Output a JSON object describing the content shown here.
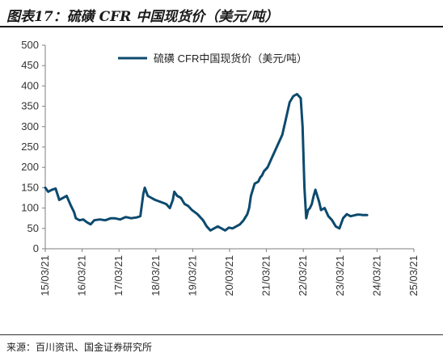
{
  "header": {
    "title": "图表17：硫磺 CFR 中国现货价（美元/吨）"
  },
  "footer": {
    "source": "来源：百川资讯、国金证券研究所"
  },
  "chart_data": {
    "type": "line",
    "title": "图表17：硫磺 CFR 中国现货价（美元/吨）",
    "xlabel": "",
    "ylabel": "",
    "ylim": [
      0,
      500
    ],
    "yticks": [
      0,
      50,
      100,
      150,
      200,
      250,
      300,
      350,
      400,
      450,
      500
    ],
    "xticks": [
      "15/03/21",
      "16/03/21",
      "17/03/21",
      "18/03/21",
      "19/03/21",
      "20/03/21",
      "21/03/21",
      "22/03/21",
      "23/03/21",
      "24/03/21",
      "25/03/21"
    ],
    "grid": false,
    "legend": "top-center",
    "colors": {
      "series": "#0d4a6e",
      "axis": "#7f7f7f"
    },
    "series": [
      {
        "name": "硫磺 CFR中国现货价（美元/吨）",
        "x": [
          2015.22,
          2015.3,
          2015.4,
          2015.5,
          2015.6,
          2015.7,
          2015.8,
          2015.92,
          2016.0,
          2016.05,
          2016.15,
          2016.25,
          2016.35,
          2016.45,
          2016.55,
          2016.7,
          2016.85,
          2017.0,
          2017.1,
          2017.25,
          2017.4,
          2017.55,
          2017.7,
          2017.8,
          2017.88,
          2017.92,
          2018.0,
          2018.1,
          2018.2,
          2018.35,
          2018.5,
          2018.6,
          2018.68,
          2018.72,
          2018.8,
          2018.9,
          2019.0,
          2019.1,
          2019.2,
          2019.35,
          2019.5,
          2019.6,
          2019.7,
          2019.8,
          2019.9,
          2020.0,
          2020.1,
          2020.2,
          2020.3,
          2020.4,
          2020.5,
          2020.6,
          2020.7,
          2020.75,
          2020.8,
          2020.9,
          2021.0,
          2021.05,
          2021.1,
          2021.15,
          2021.2,
          2021.25,
          2021.35,
          2021.45,
          2021.55,
          2021.65,
          2021.75,
          2021.85,
          2021.95,
          2022.05,
          2022.15,
          2022.2,
          2022.25,
          2022.3,
          2022.35,
          2022.4,
          2022.45,
          2022.5,
          2022.55,
          2022.6,
          2022.65,
          2022.7,
          2022.8,
          2022.9,
          2023.0,
          2023.1,
          2023.2,
          2023.3,
          2023.4,
          2023.5,
          2023.6,
          2023.68,
          2023.75,
          2023.82,
          2023.9,
          2023.95
        ],
        "values": [
          150,
          140,
          145,
          148,
          120,
          125,
          130,
          105,
          90,
          75,
          70,
          72,
          65,
          60,
          70,
          72,
          70,
          75,
          75,
          72,
          78,
          75,
          77,
          80,
          135,
          150,
          130,
          125,
          120,
          115,
          110,
          100,
          120,
          140,
          130,
          125,
          110,
          105,
          95,
          85,
          70,
          55,
          45,
          50,
          55,
          50,
          45,
          52,
          50,
          55,
          60,
          70,
          85,
          100,
          130,
          160,
          165,
          175,
          180,
          190,
          195,
          200,
          220,
          240,
          260,
          280,
          320,
          360,
          375,
          380,
          370,
          300,
          150,
          75,
          95,
          100,
          110,
          130,
          145,
          130,
          115,
          95,
          100,
          80,
          70,
          55,
          50,
          75,
          85,
          80,
          82,
          84,
          84,
          83,
          83,
          83
        ]
      }
    ]
  }
}
